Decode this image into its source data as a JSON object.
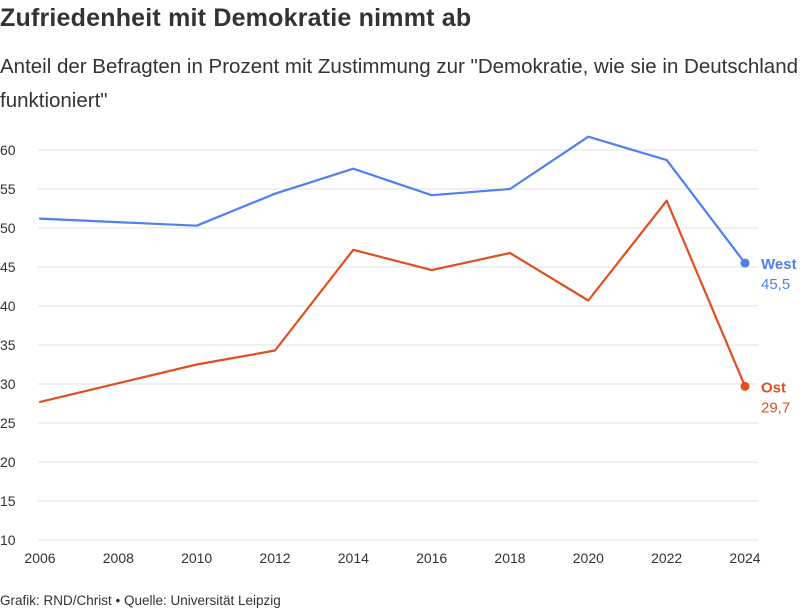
{
  "title": "Zufriedenheit mit Demokratie nimmt ab",
  "subtitle": "Anteil der Befragten in Prozent mit Zustimmung zur \"Demokratie, wie sie in Deutschland funktioniert\"",
  "source": "Grafik: RND/Christ • Quelle: Universität Leipzig",
  "chart_data": {
    "type": "line",
    "title": "Zufriedenheit mit Demokratie nimmt ab",
    "subtitle": "Anteil der Befragten in Prozent mit Zustimmung zur \"Demokratie, wie sie in Deutschland funktioniert\"",
    "xlabel": "",
    "ylabel": "",
    "xlim": [
      2006,
      2024
    ],
    "ylim": [
      10,
      60
    ],
    "x_ticks": [
      2006,
      2008,
      2010,
      2012,
      2014,
      2016,
      2018,
      2020,
      2022,
      2024
    ],
    "y_ticks": [
      10,
      15,
      20,
      25,
      30,
      35,
      40,
      45,
      50,
      55,
      60
    ],
    "grid": true,
    "legend": "direct labels at line ends (right)",
    "series": [
      {
        "name": "West",
        "color": "#4f7ff0",
        "end_label": "45,5",
        "points": [
          {
            "x": 2006,
            "y": 51.2
          },
          {
            "x": 2010,
            "y": 50.3
          },
          {
            "x": 2012,
            "y": 54.4
          },
          {
            "x": 2014,
            "y": 57.6
          },
          {
            "x": 2016,
            "y": 54.2
          },
          {
            "x": 2018,
            "y": 55.0
          },
          {
            "x": 2020,
            "y": 61.7
          },
          {
            "x": 2022,
            "y": 58.7
          },
          {
            "x": 2024,
            "y": 45.5
          }
        ]
      },
      {
        "name": "Ost",
        "color": "#df4f1f",
        "end_label": "29,7",
        "points": [
          {
            "x": 2006,
            "y": 27.7
          },
          {
            "x": 2010,
            "y": 32.5
          },
          {
            "x": 2012,
            "y": 34.3
          },
          {
            "x": 2014,
            "y": 47.2
          },
          {
            "x": 2016,
            "y": 44.6
          },
          {
            "x": 2018,
            "y": 46.8
          },
          {
            "x": 2020,
            "y": 40.7
          },
          {
            "x": 2022,
            "y": 53.5
          },
          {
            "x": 2024,
            "y": 29.7
          }
        ]
      }
    ]
  }
}
